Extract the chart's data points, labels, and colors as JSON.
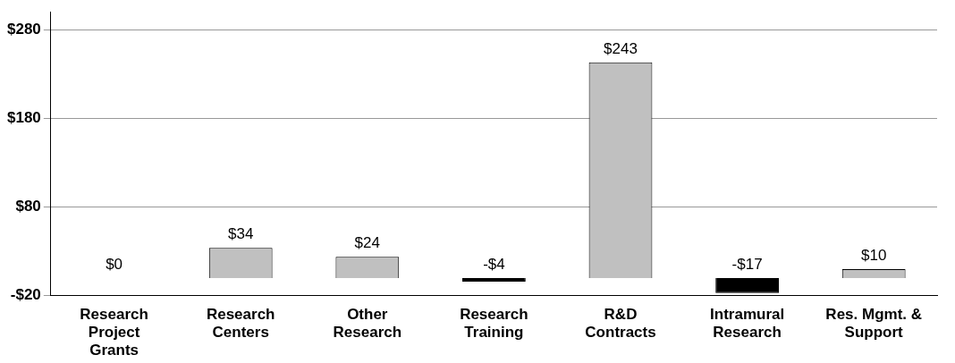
{
  "chart_data": {
    "type": "bar",
    "categories": [
      "Research Project Grants",
      "Research Centers",
      "Other Research",
      "Research Training",
      "R&D Contracts",
      "Intramural Research",
      "Res. Mgmt. & Support"
    ],
    "values": [
      0,
      34,
      24,
      -4,
      243,
      -17,
      10
    ],
    "colors": [
      "#000000",
      "#c0c0c0",
      "#c0c0c0",
      "#000000",
      "#c0c0c0",
      "#000000",
      "#c0c0c0"
    ],
    "value_labels": [
      "$0",
      "$34",
      "$24",
      "-$4",
      "$243",
      "-$17",
      "$10"
    ],
    "ylim": [
      -20,
      300
    ],
    "yticks": [
      {
        "value": -20,
        "label": "-$20"
      },
      {
        "value": 80,
        "label": "$80"
      },
      {
        "value": 180,
        "label": "$180"
      },
      {
        "value": 280,
        "label": "$280"
      }
    ],
    "grid": "y"
  }
}
